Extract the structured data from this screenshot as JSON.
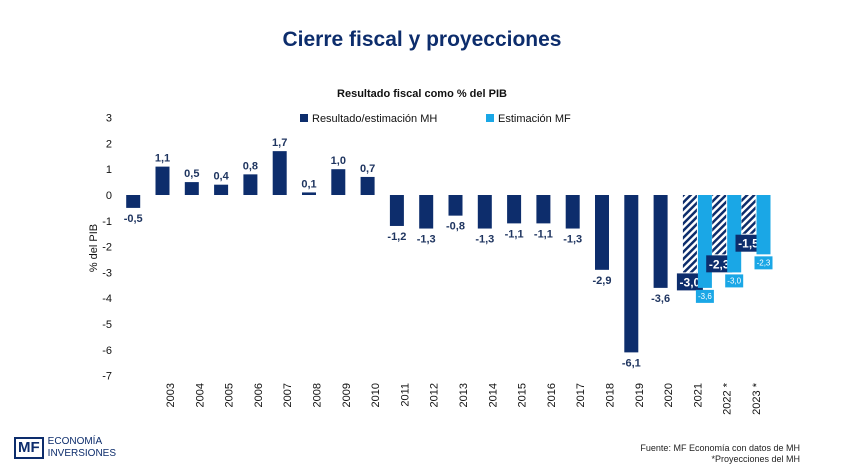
{
  "title": "Cierre fiscal y proyecciones",
  "source": "Fuente: MF Economía con datos de MH",
  "note": "*Proyecciones del MH",
  "logo": {
    "line1": "ECONOMÍA",
    "line2": "INVERSIONES",
    "mark": "MF"
  },
  "colors": {
    "mh": "#0d2d6c",
    "mf": "#1aa7e6"
  },
  "chart_data": {
    "type": "bar",
    "title": "Resultado fiscal como % del PIB",
    "ylabel": "% del PIB",
    "xlabel": "",
    "ylim": [
      -7,
      3
    ],
    "yticks": [
      3,
      2,
      1,
      0,
      -1,
      -2,
      -3,
      -4,
      -5,
      -6,
      -7
    ],
    "grid": false,
    "legend": "top",
    "categories": [
      "",
      "2003",
      "2004",
      "2005",
      "2006",
      "2007",
      "2008",
      "2009",
      "2010",
      "2011",
      "2012",
      "2013",
      "2014",
      "2015",
      "2016",
      "2017",
      "2018",
      "2019",
      "2020",
      "2021",
      "2022 *",
      "2023 *"
    ],
    "series": [
      {
        "name": "Resultado/estimación MH",
        "values": [
          -0.5,
          1.1,
          0.5,
          0.4,
          0.8,
          1.7,
          0.1,
          1.0,
          0.7,
          -1.2,
          -1.3,
          -0.8,
          -1.3,
          -1.1,
          -1.1,
          -1.3,
          -2.9,
          -6.1,
          -3.6,
          -3.0,
          -2.3,
          -1.5
        ],
        "hatched_from_index": 19
      },
      {
        "name": "Estimación MF",
        "values": [
          null,
          null,
          null,
          null,
          null,
          null,
          null,
          null,
          null,
          null,
          null,
          null,
          null,
          null,
          null,
          null,
          null,
          null,
          null,
          -3.6,
          -3.0,
          -2.3
        ]
      }
    ]
  }
}
